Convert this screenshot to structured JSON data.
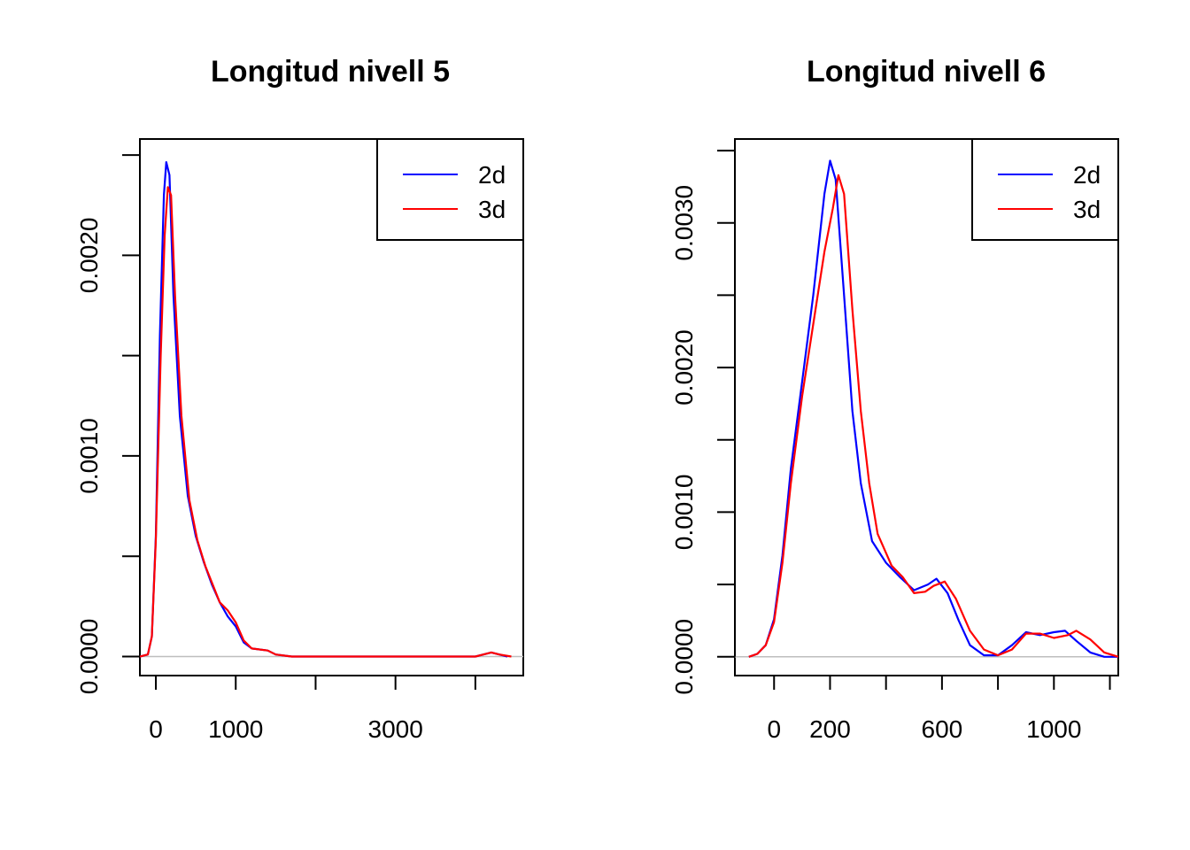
{
  "colors": {
    "2d": "#0000ff",
    "3d": "#ff0000",
    "baseline": "#bebebe",
    "axis": "#000000"
  },
  "chart_data": [
    {
      "type": "line",
      "title": "Longitud nivell 5",
      "xlim": [
        -200,
        4600
      ],
      "ylim": [
        -9.5e-05,
        0.00258
      ],
      "x_ticks": [
        0,
        1000,
        2000,
        3000,
        4000
      ],
      "x_tick_labels": [
        "0",
        "1000",
        "",
        "3000",
        ""
      ],
      "y_ticks": [
        0,
        0.0005,
        0.001,
        0.0015,
        0.002,
        0.0025
      ],
      "y_tick_labels": [
        "0.0000",
        "",
        "0.0010",
        "",
        "0.0020",
        ""
      ],
      "legend": {
        "position": "top-right",
        "entries": [
          "2d",
          "3d"
        ]
      },
      "baseline": true,
      "series": [
        {
          "name": "2d",
          "color": "#0000ff",
          "points": [
            [
              -200,
              0
            ],
            [
              -100,
              1e-05
            ],
            [
              -50,
              0.0001
            ],
            [
              0,
              0.0006
            ],
            [
              50,
              0.0016
            ],
            [
              100,
              0.0023
            ],
            [
              130,
              0.002465
            ],
            [
              170,
              0.0024
            ],
            [
              220,
              0.0018
            ],
            [
              300,
              0.0012
            ],
            [
              400,
              0.0008
            ],
            [
              500,
              0.0006
            ],
            [
              600,
              0.00047
            ],
            [
              700,
              0.00036
            ],
            [
              800,
              0.00027
            ],
            [
              900,
              0.0002
            ],
            [
              1000,
              0.00015
            ],
            [
              1100,
              7e-05
            ],
            [
              1200,
              4e-05
            ],
            [
              1400,
              3e-05
            ],
            [
              1500,
              1e-05
            ],
            [
              1700,
              0
            ],
            [
              4000,
              0
            ],
            [
              4100,
              1e-05
            ],
            [
              4200,
              2e-05
            ],
            [
              4300,
              1e-05
            ],
            [
              4400,
              0
            ]
          ]
        },
        {
          "name": "3d",
          "color": "#ff0000",
          "points": [
            [
              -200,
              0
            ],
            [
              -100,
              1e-05
            ],
            [
              -50,
              0.0001
            ],
            [
              0,
              0.00058
            ],
            [
              60,
              0.0015
            ],
            [
              110,
              0.0021
            ],
            [
              150,
              0.00234
            ],
            [
              190,
              0.0023
            ],
            [
              240,
              0.0018
            ],
            [
              320,
              0.0012
            ],
            [
              420,
              0.00078
            ],
            [
              520,
              0.00058
            ],
            [
              620,
              0.00045
            ],
            [
              720,
              0.00035
            ],
            [
              800,
              0.00027
            ],
            [
              900,
              0.00023
            ],
            [
              1000,
              0.00017
            ],
            [
              1100,
              8e-05
            ],
            [
              1200,
              4e-05
            ],
            [
              1400,
              3e-05
            ],
            [
              1500,
              1e-05
            ],
            [
              1700,
              0
            ],
            [
              4000,
              0
            ],
            [
              4100,
              1e-05
            ],
            [
              4200,
              2e-05
            ],
            [
              4300,
              1e-05
            ],
            [
              4450,
              0
            ]
          ]
        }
      ]
    },
    {
      "type": "line",
      "title": "Longitud nivell 6",
      "xlim": [
        -140,
        1230
      ],
      "ylim": [
        -0.00013,
        0.00358
      ],
      "x_ticks": [
        0,
        200,
        400,
        600,
        800,
        1000,
        1200
      ],
      "x_tick_labels": [
        "0",
        "200",
        "",
        "600",
        "",
        "1000",
        ""
      ],
      "y_ticks": [
        0,
        0.0005,
        0.001,
        0.0015,
        0.002,
        0.0025,
        0.003,
        0.0035
      ],
      "y_tick_labels": [
        "0.0000",
        "",
        "0.0010",
        "",
        "0.0020",
        "",
        "0.0030",
        ""
      ],
      "legend": {
        "position": "top-right",
        "entries": [
          "2d",
          "3d"
        ]
      },
      "baseline": true,
      "series": [
        {
          "name": "2d",
          "color": "#0000ff",
          "points": [
            [
              -90,
              0
            ],
            [
              -60,
              2e-05
            ],
            [
              -30,
              8e-05
            ],
            [
              0,
              0.00026
            ],
            [
              30,
              0.0007
            ],
            [
              60,
              0.0013
            ],
            [
              100,
              0.0019
            ],
            [
              140,
              0.0025
            ],
            [
              180,
              0.0032
            ],
            [
              200,
              0.00343
            ],
            [
              220,
              0.0033
            ],
            [
              250,
              0.0025
            ],
            [
              280,
              0.0017
            ],
            [
              310,
              0.0012
            ],
            [
              350,
              0.0008
            ],
            [
              400,
              0.00065
            ],
            [
              450,
              0.00055
            ],
            [
              500,
              0.00046
            ],
            [
              550,
              0.0005
            ],
            [
              580,
              0.00054
            ],
            [
              620,
              0.00044
            ],
            [
              660,
              0.00025
            ],
            [
              700,
              8e-05
            ],
            [
              750,
              1e-05
            ],
            [
              800,
              1e-05
            ],
            [
              850,
              8e-05
            ],
            [
              900,
              0.00017
            ],
            [
              950,
              0.00015
            ],
            [
              1000,
              0.00017
            ],
            [
              1040,
              0.00018
            ],
            [
              1080,
              0.00011
            ],
            [
              1130,
              3e-05
            ],
            [
              1180,
              0
            ],
            [
              1230,
              0
            ]
          ]
        },
        {
          "name": "3d",
          "color": "#ff0000",
          "points": [
            [
              -90,
              0
            ],
            [
              -60,
              2e-05
            ],
            [
              -30,
              8e-05
            ],
            [
              0,
              0.00024
            ],
            [
              30,
              0.00065
            ],
            [
              60,
              0.0012
            ],
            [
              100,
              0.0018
            ],
            [
              140,
              0.0023
            ],
            [
              180,
              0.0028
            ],
            [
              210,
              0.0031
            ],
            [
              230,
              0.00333
            ],
            [
              250,
              0.0032
            ],
            [
              280,
              0.0024
            ],
            [
              310,
              0.0017
            ],
            [
              340,
              0.0012
            ],
            [
              370,
              0.00085
            ],
            [
              420,
              0.00063
            ],
            [
              460,
              0.00055
            ],
            [
              500,
              0.00044
            ],
            [
              540,
              0.00045
            ],
            [
              570,
              0.00049
            ],
            [
              610,
              0.00052
            ],
            [
              650,
              0.0004
            ],
            [
              700,
              0.00018
            ],
            [
              750,
              5e-05
            ],
            [
              800,
              1e-05
            ],
            [
              850,
              5e-05
            ],
            [
              900,
              0.00016
            ],
            [
              950,
              0.00016
            ],
            [
              1000,
              0.00013
            ],
            [
              1050,
              0.00015
            ],
            [
              1080,
              0.00018
            ],
            [
              1130,
              0.00012
            ],
            [
              1180,
              3e-05
            ],
            [
              1230,
              0
            ]
          ]
        }
      ]
    }
  ]
}
